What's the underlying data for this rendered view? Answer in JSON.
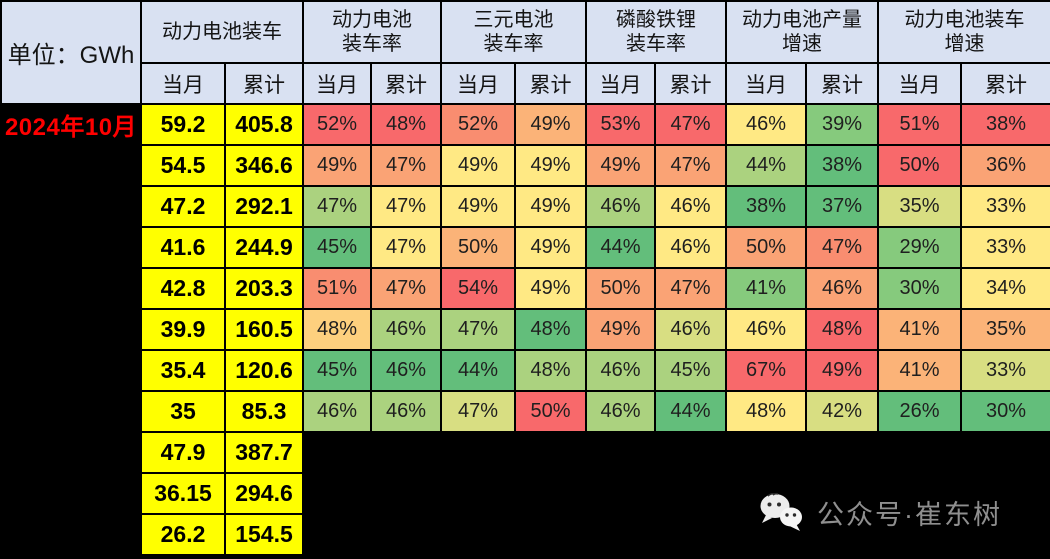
{
  "unit_label": "单位：GWh",
  "period_label": "2024年10月",
  "watermark": {
    "icon": "wechat-icon",
    "label": "公众号·崔东树"
  },
  "colors": {
    "background_black": "#000000",
    "header_bg": "#D9E1F2",
    "highlight_yellow": "#FFFF00",
    "period_red": "#FF0000",
    "watermark_gray": "#8F8F8F",
    "palette": {
      "r1": "#F8696B",
      "o1": "#F98D70",
      "o2": "#FAA375",
      "o3": "#FBB378",
      "yo": "#FDD07E",
      "y1": "#FFE984",
      "yg": "#D8DE82",
      "lg": "#ABD27F",
      "g2": "#86CA7D",
      "g1": "#63BE7B"
    }
  },
  "chart_data": {
    "type": "table",
    "unit": "GWh",
    "period": "2024年10月",
    "column_groups": [
      {
        "label": "动力电池装车",
        "lines": [
          "动力电池装车"
        ],
        "subs": [
          "当月",
          "累计"
        ]
      },
      {
        "label": "动力电池装车率",
        "lines": [
          "动力电池",
          "装车率"
        ],
        "subs": [
          "当月",
          "累计"
        ]
      },
      {
        "label": "三元电池装车率",
        "lines": [
          "三元电池",
          "装车率"
        ],
        "subs": [
          "当月",
          "累计"
        ]
      },
      {
        "label": "磷酸铁锂装车率",
        "lines": [
          "磷酸铁锂",
          "装车率"
        ],
        "subs": [
          "当月",
          "累计"
        ]
      },
      {
        "label": "动力电池产量增速",
        "lines": [
          "动力电池产量",
          "增速"
        ],
        "subs": [
          "当月",
          "累计"
        ]
      },
      {
        "label": "动力电池装车增速",
        "lines": [
          "动力电池装车",
          "增速"
        ],
        "subs": [
          "当月",
          "累计"
        ]
      }
    ],
    "rows": [
      {
        "values": [
          "59.2",
          "405.8",
          "52%",
          "48%",
          "52%",
          "49%",
          "53%",
          "47%",
          "46%",
          "39%",
          "51%",
          "38%"
        ],
        "colors": [
          "yellow",
          "yellow",
          "r1",
          "r1",
          "o1",
          "o3",
          "r1",
          "r1",
          "y1",
          "g2",
          "r1",
          "r1"
        ]
      },
      {
        "values": [
          "54.5",
          "346.6",
          "49%",
          "47%",
          "49%",
          "49%",
          "49%",
          "47%",
          "44%",
          "38%",
          "50%",
          "36%"
        ],
        "colors": [
          "yellow",
          "yellow",
          "o2",
          "o2",
          "y1",
          "y1",
          "o2",
          "o2",
          "lg",
          "g1",
          "r1",
          "o2"
        ]
      },
      {
        "values": [
          "47.2",
          "292.1",
          "47%",
          "47%",
          "49%",
          "49%",
          "46%",
          "46%",
          "38%",
          "37%",
          "35%",
          "33%"
        ],
        "colors": [
          "yellow",
          "yellow",
          "lg",
          "y1",
          "y1",
          "y1",
          "lg",
          "y1",
          "g1",
          "g1",
          "yg",
          "y1"
        ]
      },
      {
        "values": [
          "41.6",
          "244.9",
          "45%",
          "47%",
          "50%",
          "49%",
          "44%",
          "46%",
          "50%",
          "47%",
          "29%",
          "33%"
        ],
        "colors": [
          "yellow",
          "yellow",
          "g1",
          "y1",
          "o3",
          "y1",
          "g1",
          "y1",
          "o2",
          "o1",
          "g2",
          "y1"
        ]
      },
      {
        "values": [
          "42.8",
          "203.3",
          "51%",
          "47%",
          "54%",
          "49%",
          "50%",
          "47%",
          "41%",
          "46%",
          "30%",
          "34%"
        ],
        "colors": [
          "yellow",
          "yellow",
          "o1",
          "o2",
          "r1",
          "y1",
          "o2",
          "o2",
          "g2",
          "o2",
          "g2",
          "y1"
        ]
      },
      {
        "values": [
          "39.9",
          "160.5",
          "48%",
          "46%",
          "47%",
          "48%",
          "49%",
          "46%",
          "46%",
          "48%",
          "41%",
          "35%"
        ],
        "colors": [
          "yellow",
          "yellow",
          "yo",
          "lg",
          "lg",
          "g1",
          "o2",
          "yg",
          "y1",
          "r1",
          "o3",
          "o3"
        ]
      },
      {
        "values": [
          "35.4",
          "120.6",
          "45%",
          "46%",
          "44%",
          "48%",
          "46%",
          "45%",
          "67%",
          "49%",
          "41%",
          "33%"
        ],
        "colors": [
          "yellow",
          "yellow",
          "g1",
          "g1",
          "g1",
          "lg",
          "lg",
          "lg",
          "r1",
          "r1",
          "o3",
          "yg"
        ]
      },
      {
        "values": [
          "35",
          "85.3",
          "46%",
          "46%",
          "47%",
          "50%",
          "46%",
          "44%",
          "48%",
          "42%",
          "26%",
          "30%"
        ],
        "colors": [
          "yellow",
          "yellow",
          "lg",
          "lg",
          "yg",
          "r1",
          "lg",
          "g1",
          "y1",
          "yg",
          "g1",
          "g1"
        ]
      },
      {
        "values": [
          "47.9",
          "387.7"
        ],
        "colors": [
          "yellow",
          "yellow"
        ]
      },
      {
        "values": [
          "36.15",
          "294.6"
        ],
        "colors": [
          "yellow",
          "yellow"
        ]
      },
      {
        "values": [
          "26.2",
          "154.5"
        ],
        "colors": [
          "yellow",
          "yellow"
        ]
      }
    ]
  }
}
